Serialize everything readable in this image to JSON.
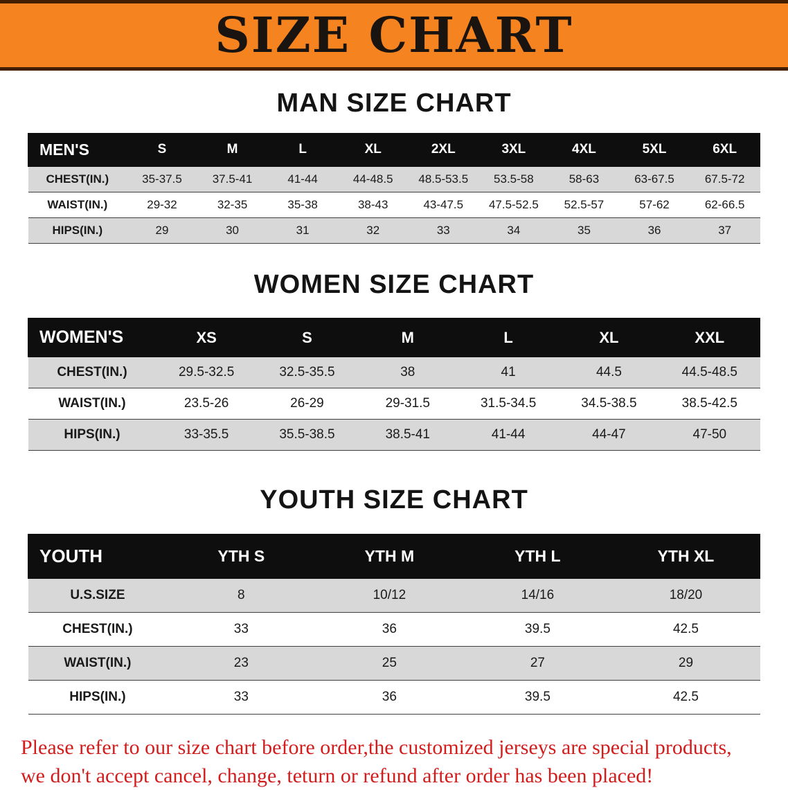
{
  "banner": {
    "title": "SIZE CHART",
    "bg_color": "#f5831f",
    "border_color": "#441e03",
    "title_color": "#1a1410"
  },
  "sections": {
    "men": {
      "heading": "MAN SIZE CHART",
      "table": {
        "header": [
          "MEN'S",
          "S",
          "M",
          "L",
          "XL",
          "2XL",
          "3XL",
          "4XL",
          "5XL",
          "6XL"
        ],
        "rows": [
          [
            "CHEST(IN.)",
            "35-37.5",
            "37.5-41",
            "41-44",
            "44-48.5",
            "48.5-53.5",
            "53.5-58",
            "58-63",
            "63-67.5",
            "67.5-72"
          ],
          [
            "WAIST(IN.)",
            "29-32",
            "32-35",
            "35-38",
            "38-43",
            "43-47.5",
            "47.5-52.5",
            "52.5-57",
            "57-62",
            "62-66.5"
          ],
          [
            "HIPS(IN.)",
            "29",
            "30",
            "31",
            "32",
            "33",
            "34",
            "35",
            "36",
            "37"
          ]
        ]
      }
    },
    "women": {
      "heading": "WOMEN SIZE CHART",
      "table": {
        "header": [
          "WOMEN'S",
          "XS",
          "S",
          "M",
          "L",
          "XL",
          "XXL"
        ],
        "rows": [
          [
            "CHEST(IN.)",
            "29.5-32.5",
            "32.5-35.5",
            "38",
            "41",
            "44.5",
            "44.5-48.5"
          ],
          [
            "WAIST(IN.)",
            "23.5-26",
            "26-29",
            "29-31.5",
            "31.5-34.5",
            "34.5-38.5",
            "38.5-42.5"
          ],
          [
            "HIPS(IN.)",
            "33-35.5",
            "35.5-38.5",
            "38.5-41",
            "41-44",
            "44-47",
            "47-50"
          ]
        ]
      }
    },
    "youth": {
      "heading": "YOUTH SIZE CHART",
      "table": {
        "header": [
          "YOUTH",
          "YTH S",
          "YTH M",
          "YTH L",
          "YTH XL"
        ],
        "rows": [
          [
            "U.S.SIZE",
            "8",
            "10/12",
            "14/16",
            "18/20"
          ],
          [
            "CHEST(IN.)",
            "33",
            "36",
            "39.5",
            "42.5"
          ],
          [
            "WAIST(IN.)",
            "23",
            "25",
            "27",
            "29"
          ],
          [
            "HIPS(IN.)",
            "33",
            "36",
            "39.5",
            "42.5"
          ]
        ]
      }
    }
  },
  "notice": {
    "line1": "Please refer to our size chart before order,the customized jerseys are special products,",
    "line2": "we don't accept cancel, change, teturn or refund after order has been placed!",
    "color": "#d21d1d"
  },
  "colors": {
    "table_header_bg": "#0e0e0e",
    "row_shade": "#d8d8d8",
    "row_line": "#3f3f3f"
  }
}
